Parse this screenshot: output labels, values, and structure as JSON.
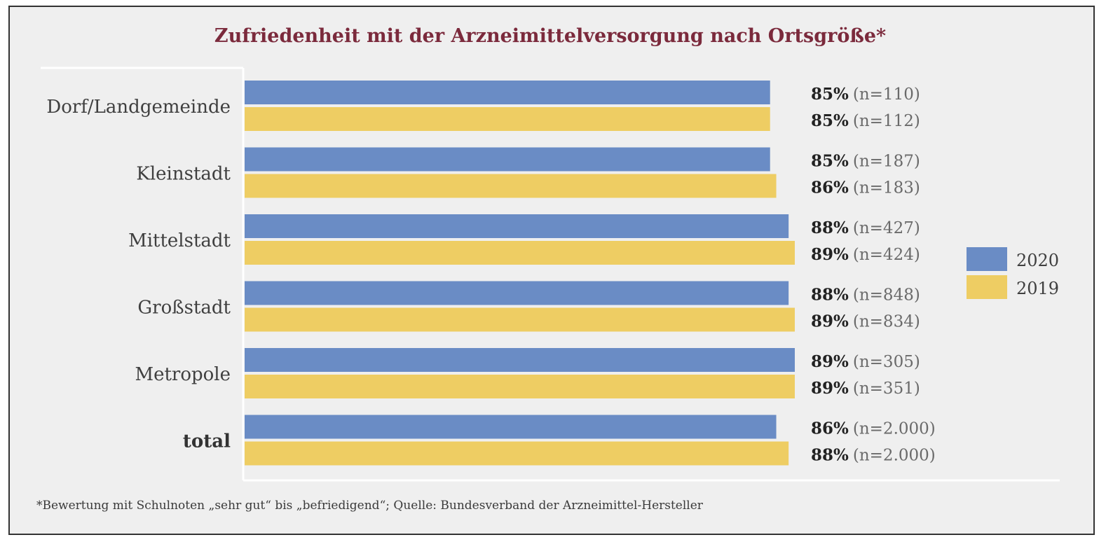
{
  "chart_data": {
    "type": "bar",
    "orientation": "horizontal",
    "title": "Zufriedenheit mit der Arzneimittelversorgung nach Ortsgröße*",
    "categories": [
      "Dorf/Landgemeinde",
      "Kleinstadt",
      "Mittelstadt",
      "Großstadt",
      "Metropole",
      "total"
    ],
    "series": [
      {
        "name": "2020",
        "color": "#6a8cc5",
        "values": [
          85,
          85,
          88,
          88,
          89,
          86
        ],
        "labels": [
          "85%",
          "85%",
          "88%",
          "88%",
          "89%",
          "86%"
        ],
        "n": [
          "(n=110)",
          "(n=187)",
          "(n=427)",
          "(n=848)",
          "(n=305)",
          "(n=2.000)"
        ]
      },
      {
        "name": "2019",
        "color": "#eecd63",
        "values": [
          85,
          86,
          89,
          89,
          89,
          88
        ],
        "labels": [
          "85%",
          "86%",
          "89%",
          "89%",
          "89%",
          "88%"
        ],
        "n": [
          "(n=112)",
          "(n=183)",
          "(n=424)",
          "(n=834)",
          "(n=351)",
          "(n=2.000)"
        ]
      }
    ],
    "value_unit": "%",
    "legend_position": "right",
    "grid": false
  },
  "footnote": "*Bewertung mit Schulnoten „sehr gut“ bis „befriedigend“; Quelle: Bundesverband der Arzneimittel-Hersteller"
}
